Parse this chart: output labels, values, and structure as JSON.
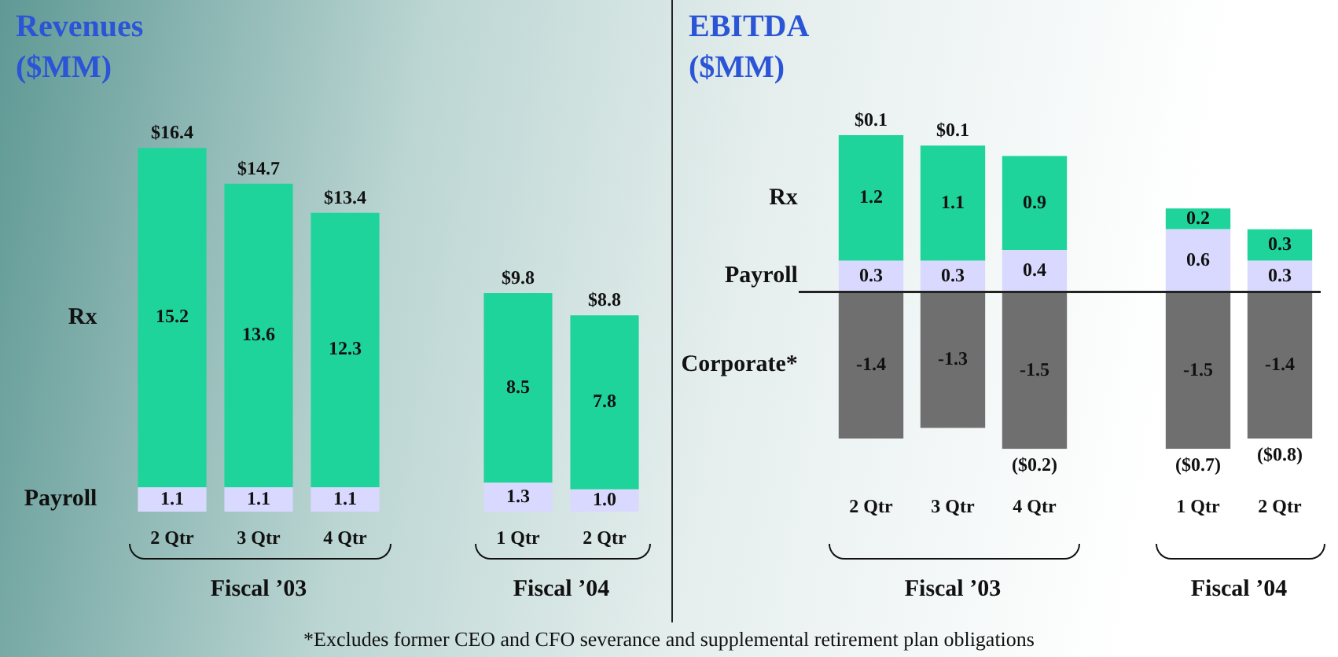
{
  "chart_data": [
    {
      "type": "bar",
      "title": "Revenues ($MM)",
      "stacked": true,
      "tick_labels": "x",
      "grid": false,
      "legend": false,
      "categories": [
        "2 Qtr",
        "3 Qtr",
        "4 Qtr",
        null,
        "1 Qtr",
        "2 Qtr"
      ],
      "series": [
        {
          "name": "Payroll",
          "color": "#d9d9ff",
          "values": [
            1.1,
            1.1,
            1.1,
            null,
            1.3,
            1.0
          ],
          "value_labels": [
            "1.1",
            "1.1",
            "1.1",
            null,
            "1.3",
            "1.0"
          ]
        },
        {
          "name": "Rx",
          "color": "#1ed49a",
          "values": [
            15.2,
            13.6,
            12.3,
            null,
            8.5,
            7.8
          ],
          "value_labels": [
            "15.2",
            "13.6",
            "12.3",
            null,
            "8.5",
            "7.8"
          ]
        }
      ],
      "totals": [
        "$16.4",
        "$14.7",
        "$13.4",
        null,
        "$9.8",
        "$8.8"
      ],
      "annotations": [
        "Fiscal ’03",
        "Fiscal ’04"
      ]
    },
    {
      "type": "bar",
      "title": "EBITDA ($MM)",
      "stacked": true,
      "tick_labels": "x",
      "grid": false,
      "legend": false,
      "categories": [
        "2 Qtr",
        "3 Qtr",
        "4 Qtr",
        null,
        "1 Qtr",
        "2 Qtr"
      ],
      "series": [
        {
          "name": "Payroll",
          "color": "#d9d9ff",
          "values": [
            0.3,
            0.3,
            0.4,
            null,
            0.6,
            0.3
          ],
          "value_labels": [
            "0.3",
            "0.3",
            "0.4",
            null,
            "0.6",
            "0.3"
          ]
        },
        {
          "name": "Rx",
          "color": "#1ed49a",
          "values": [
            1.2,
            1.1,
            0.9,
            null,
            0.2,
            0.3
          ],
          "value_labels": [
            "1.2",
            "1.1",
            "0.9",
            null,
            "0.2",
            "0.3"
          ]
        },
        {
          "name": "Corporate*",
          "color": "#6f6f6f",
          "values": [
            -1.4,
            -1.3,
            -1.5,
            null,
            -1.5,
            -1.4
          ],
          "value_labels": [
            "-1.4",
            "-1.3",
            "-1.5",
            null,
            "-1.5",
            "-1.4"
          ]
        }
      ],
      "totals": [
        "$0.1",
        "$0.1",
        "($0.2)",
        null,
        "($0.7)",
        "($0.8)"
      ],
      "ref_lines": [
        {
          "axis": "y",
          "value": 0,
          "color": "#222222"
        }
      ],
      "annotations": [
        "Fiscal ’03",
        "Fiscal ’04",
        "*Excludes former CEO and CFO severance and supplemental retirement plan obligations"
      ]
    }
  ]
}
